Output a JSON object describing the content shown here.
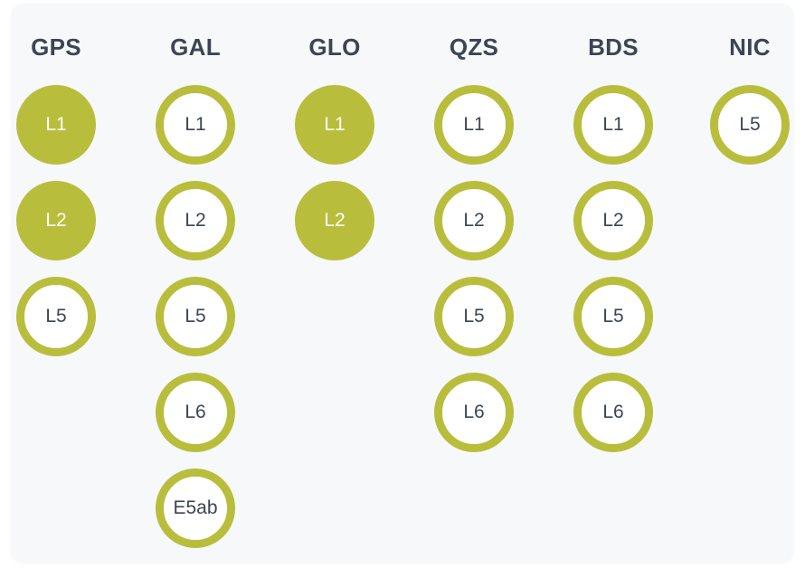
{
  "colors": {
    "accent": "#b8be3c",
    "heading_text": "#3d4453",
    "panel_background": "#f7f8fa"
  },
  "constellations": [
    {
      "id": "gps",
      "name": "GPS",
      "bands": [
        {
          "label": "L1",
          "enabled": true
        },
        {
          "label": "L2",
          "enabled": true
        },
        {
          "label": "L5",
          "enabled": false
        }
      ]
    },
    {
      "id": "gal",
      "name": "GAL",
      "bands": [
        {
          "label": "L1",
          "enabled": false
        },
        {
          "label": "L2",
          "enabled": false
        },
        {
          "label": "L5",
          "enabled": false
        },
        {
          "label": "L6",
          "enabled": false
        },
        {
          "label": "E5ab",
          "enabled": false
        }
      ]
    },
    {
      "id": "glo",
      "name": "GLO",
      "bands": [
        {
          "label": "L1",
          "enabled": true
        },
        {
          "label": "L2",
          "enabled": true
        }
      ]
    },
    {
      "id": "qzs",
      "name": "QZS",
      "bands": [
        {
          "label": "L1",
          "enabled": false
        },
        {
          "label": "L2",
          "enabled": false
        },
        {
          "label": "L5",
          "enabled": false
        },
        {
          "label": "L6",
          "enabled": false
        }
      ]
    },
    {
      "id": "bds",
      "name": "BDS",
      "bands": [
        {
          "label": "L1",
          "enabled": false
        },
        {
          "label": "L2",
          "enabled": false
        },
        {
          "label": "L5",
          "enabled": false
        },
        {
          "label": "L6",
          "enabled": false
        }
      ]
    },
    {
      "id": "nic",
      "name": "NIC",
      "bands": [
        {
          "label": "L5",
          "enabled": false
        }
      ]
    }
  ]
}
